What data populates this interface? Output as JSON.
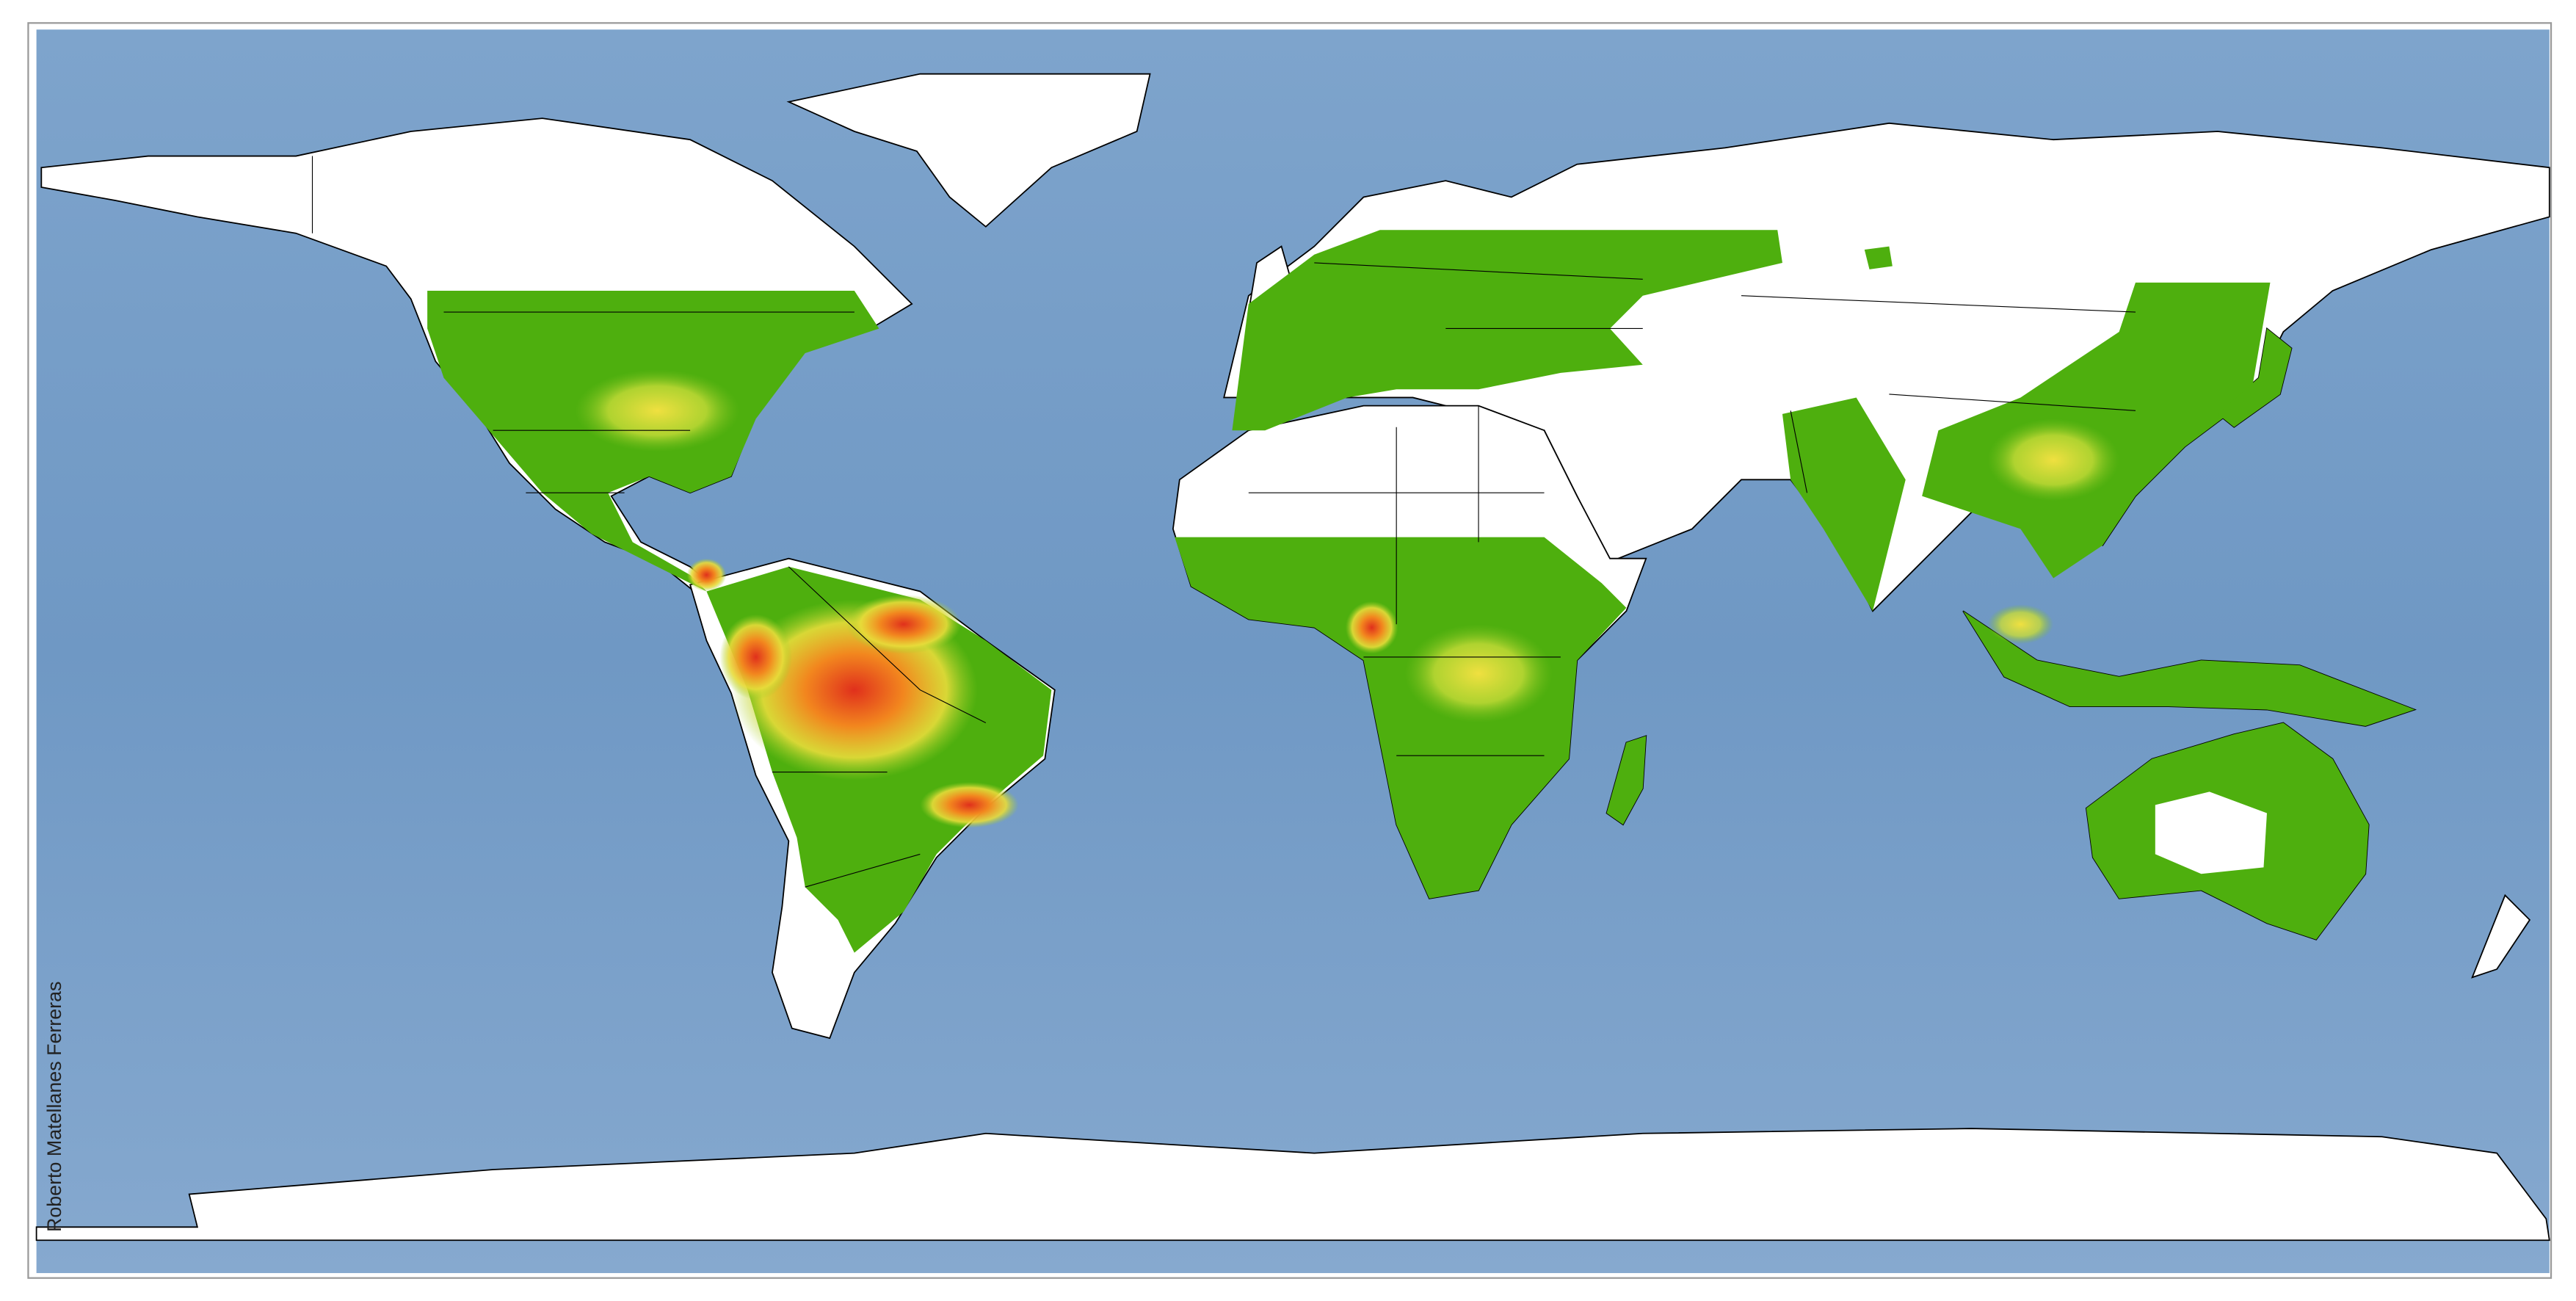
{
  "credit": "Roberto Matellanes Ferreras"
}
